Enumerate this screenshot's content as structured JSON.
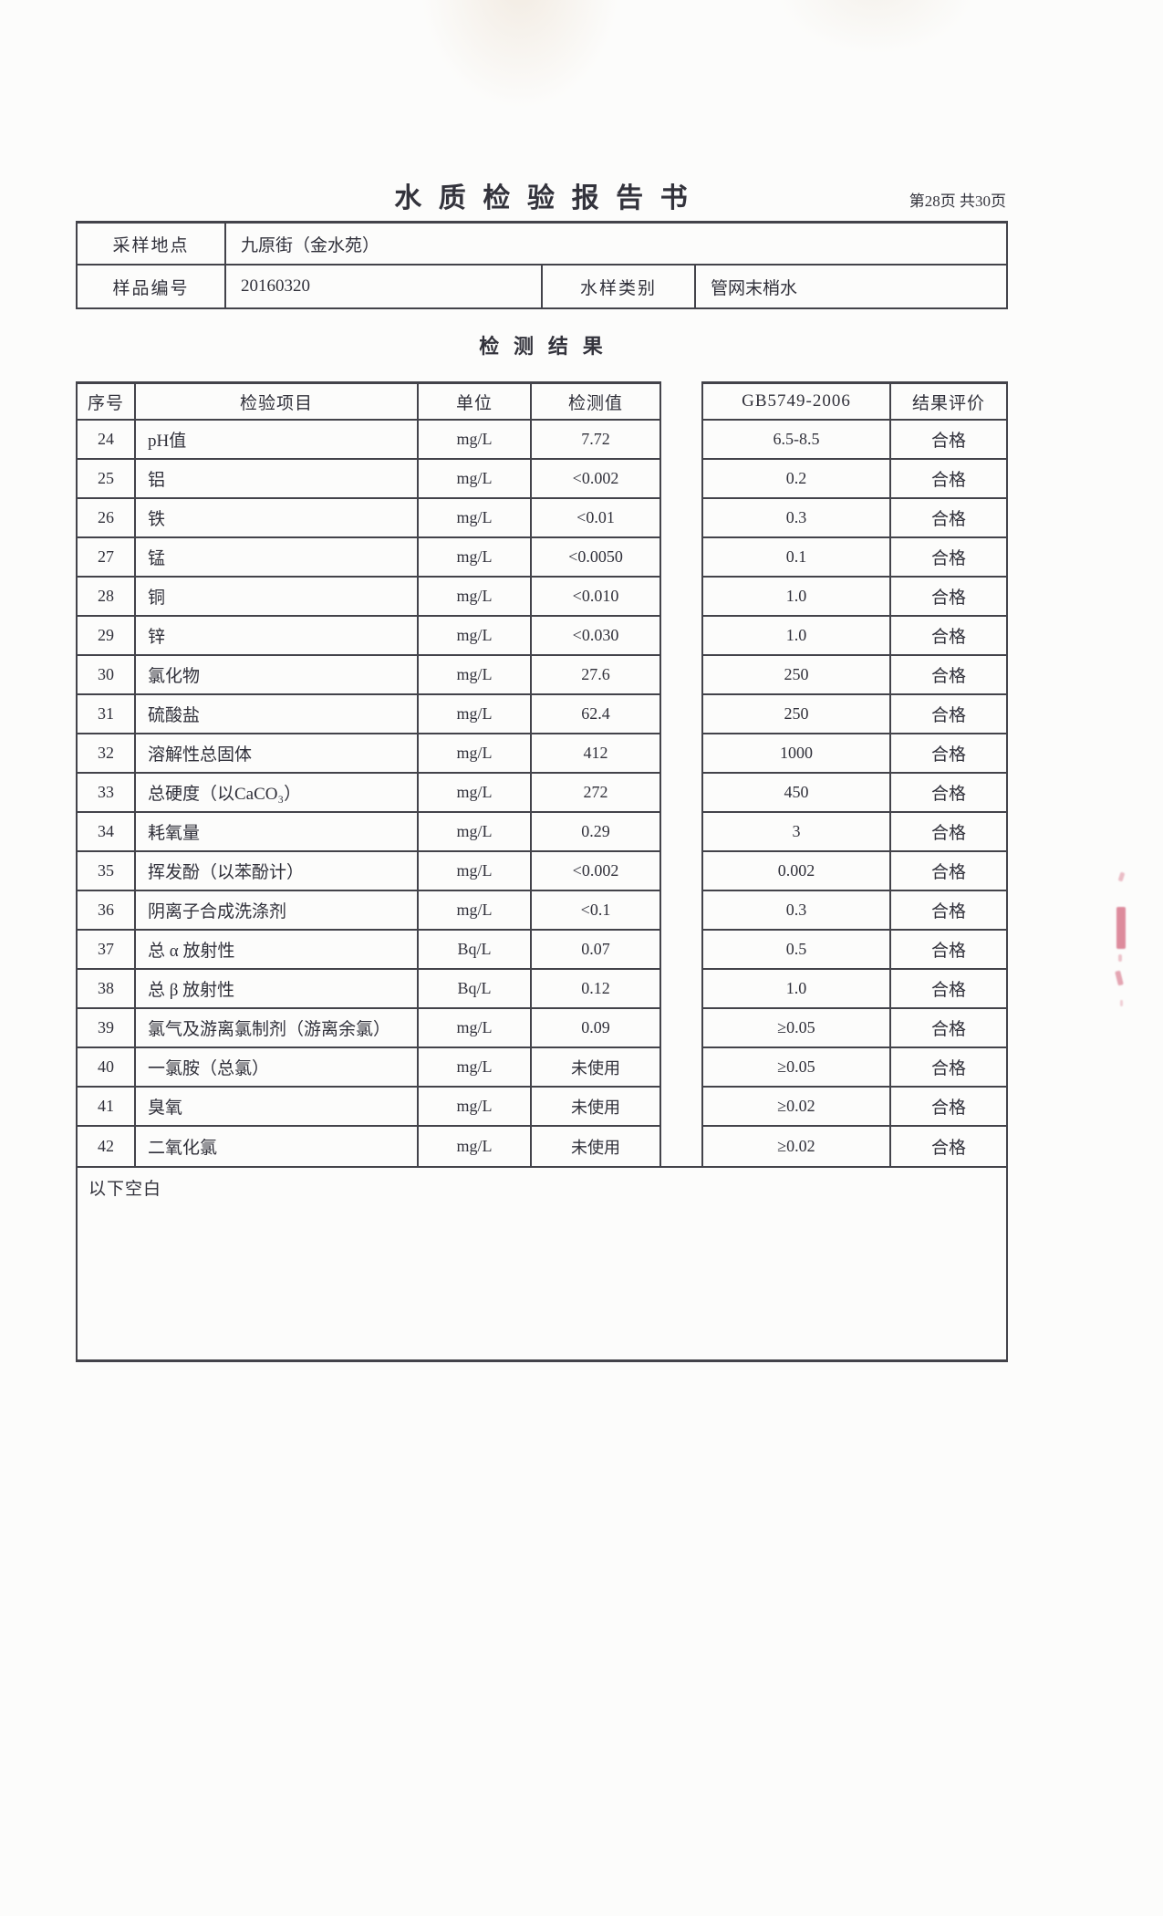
{
  "document": {
    "title": "水质检验报告书",
    "page_indicator": "第28页 共30页",
    "section_title": "检测结果",
    "footer_note": "以下空白"
  },
  "sample_info": {
    "location_label": "采样地点",
    "location_value": "九原街（金水苑）",
    "sample_no_label": "样品编号",
    "sample_no_value": "20160320",
    "water_type_label": "水样类别",
    "water_type_value": "管网末梢水"
  },
  "results_table": {
    "headers": {
      "no": "序号",
      "item": "检验项目",
      "unit": "单位",
      "value": "检测值",
      "standard": "GB5749-2006",
      "evaluation": "结果评价"
    },
    "rows": [
      {
        "no": "24",
        "item": "pH值",
        "unit": "mg/L",
        "value": "7.72",
        "standard": "6.5-8.5",
        "evaluation": "合格"
      },
      {
        "no": "25",
        "item": "铝",
        "unit": "mg/L",
        "value": "<0.002",
        "standard": "0.2",
        "evaluation": "合格"
      },
      {
        "no": "26",
        "item": "铁",
        "unit": "mg/L",
        "value": "<0.01",
        "standard": "0.3",
        "evaluation": "合格"
      },
      {
        "no": "27",
        "item": "锰",
        "unit": "mg/L",
        "value": "<0.0050",
        "standard": "0.1",
        "evaluation": "合格"
      },
      {
        "no": "28",
        "item": "铜",
        "unit": "mg/L",
        "value": "<0.010",
        "standard": "1.0",
        "evaluation": "合格"
      },
      {
        "no": "29",
        "item": "锌",
        "unit": "mg/L",
        "value": "<0.030",
        "standard": "1.0",
        "evaluation": "合格"
      },
      {
        "no": "30",
        "item": "氯化物",
        "unit": "mg/L",
        "value": "27.6",
        "standard": "250",
        "evaluation": "合格"
      },
      {
        "no": "31",
        "item": "硫酸盐",
        "unit": "mg/L",
        "value": "62.4",
        "standard": "250",
        "evaluation": "合格"
      },
      {
        "no": "32",
        "item": "溶解性总固体",
        "unit": "mg/L",
        "value": "412",
        "standard": "1000",
        "evaluation": "合格"
      },
      {
        "no": "33",
        "item": "总硬度（以CaCO₃）",
        "unit": "mg/L",
        "value": "272",
        "standard": "450",
        "evaluation": "合格"
      },
      {
        "no": "34",
        "item": "耗氧量",
        "unit": "mg/L",
        "value": "0.29",
        "standard": "3",
        "evaluation": "合格"
      },
      {
        "no": "35",
        "item": "挥发酚（以苯酚计）",
        "unit": "mg/L",
        "value": "<0.002",
        "standard": "0.002",
        "evaluation": "合格"
      },
      {
        "no": "36",
        "item": "阴离子合成洗涤剂",
        "unit": "mg/L",
        "value": "<0.1",
        "standard": "0.3",
        "evaluation": "合格"
      },
      {
        "no": "37",
        "item": "总 α 放射性",
        "unit": "Bq/L",
        "value": "0.07",
        "standard": "0.5",
        "evaluation": "合格"
      },
      {
        "no": "38",
        "item": "总 β 放射性",
        "unit": "Bq/L",
        "value": "0.12",
        "standard": "1.0",
        "evaluation": "合格"
      },
      {
        "no": "39",
        "item": "氯气及游离氯制剂（游离余氯）",
        "unit": "mg/L",
        "value": "0.09",
        "standard": "≥0.05",
        "evaluation": "合格"
      },
      {
        "no": "40",
        "item": "一氯胺（总氯）",
        "unit": "mg/L",
        "value": "未使用",
        "standard": "≥0.05",
        "evaluation": "合格"
      },
      {
        "no": "41",
        "item": "臭氧",
        "unit": "mg/L",
        "value": "未使用",
        "standard": "≥0.02",
        "evaluation": "合格"
      },
      {
        "no": "42",
        "item": "二氧化氯",
        "unit": "mg/L",
        "value": "未使用",
        "standard": "≥0.02",
        "evaluation": "合格"
      }
    ]
  },
  "colors": {
    "ink": "#2f2f38",
    "table_border": "#43434a",
    "stamp_red": "#c43050"
  }
}
